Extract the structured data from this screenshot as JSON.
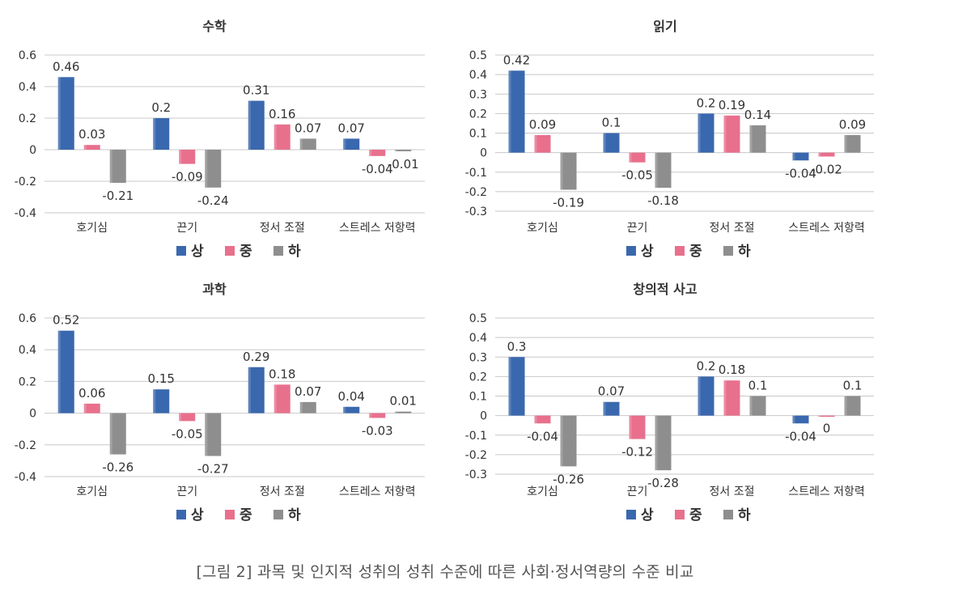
{
  "colors": {
    "상": "#3A68AE",
    "중": "#E8708D",
    "하": "#8E8E8E"
  },
  "caption": "[그림 2] 과목 및 인지적 성취의 성취 수준에 따른 사회·정서역량의 수준 비교",
  "chart_data": [
    {
      "type": "bar",
      "title": "수학",
      "categories": [
        "호기심",
        "끈기",
        "정서 조절",
        "스트레스 저항력"
      ],
      "ylim": [
        -0.4,
        0.6
      ],
      "yticks": [
        -0.4,
        -0.2,
        0,
        0.2,
        0.4,
        0.6
      ],
      "ytick_labels": [
        "-0.4",
        "-0.2",
        "0",
        "0.2",
        "0.4",
        "0.6"
      ],
      "grid": true,
      "legend_position": "bottom",
      "series": [
        {
          "name": "상",
          "values": [
            0.46,
            0.2,
            0.31,
            0.07
          ],
          "labels": [
            "0.46",
            "0.2",
            "0.31",
            "0.07"
          ]
        },
        {
          "name": "중",
          "values": [
            0.03,
            -0.09,
            0.16,
            -0.04
          ],
          "labels": [
            "0.03",
            "-0.09",
            "0.16",
            "-0.04"
          ]
        },
        {
          "name": "하",
          "values": [
            -0.21,
            -0.24,
            0.07,
            -0.01
          ],
          "labels": [
            "-0.21",
            "-0.24",
            "0.07",
            "-0.01"
          ]
        }
      ]
    },
    {
      "type": "bar",
      "title": "읽기",
      "categories": [
        "호기심",
        "끈기",
        "정서 조절",
        "스트레스 저항력"
      ],
      "ylim": [
        -0.3,
        0.5
      ],
      "yticks": [
        -0.3,
        -0.2,
        -0.1,
        0,
        0.1,
        0.2,
        0.3,
        0.4,
        0.5
      ],
      "ytick_labels": [
        "-0.3",
        "-0.2",
        "-0.1",
        "0",
        "0.1",
        "0.2",
        "0.3",
        "0.4",
        "0.5"
      ],
      "grid": true,
      "legend_position": "bottom",
      "series": [
        {
          "name": "상",
          "values": [
            0.42,
            0.1,
            0.2,
            -0.04
          ],
          "labels": [
            "0.42",
            "0.1",
            "0.2",
            "-0.04"
          ]
        },
        {
          "name": "중",
          "values": [
            0.09,
            -0.05,
            0.19,
            -0.02
          ],
          "labels": [
            "0.09",
            "-0.05",
            "0.19",
            "-0.02"
          ]
        },
        {
          "name": "하",
          "values": [
            -0.19,
            -0.18,
            0.14,
            0.09
          ],
          "labels": [
            "-0.19",
            "-0.18",
            "0.14",
            "0.09"
          ]
        }
      ]
    },
    {
      "type": "bar",
      "title": "과학",
      "categories": [
        "호기심",
        "끈기",
        "정서 조절",
        "스트레스 저항력"
      ],
      "ylim": [
        -0.4,
        0.6
      ],
      "yticks": [
        -0.4,
        -0.2,
        0,
        0.2,
        0.4,
        0.6
      ],
      "ytick_labels": [
        "-0.4",
        "-0.2",
        "0",
        "0.2",
        "0.4",
        "0.6"
      ],
      "grid": true,
      "legend_position": "bottom",
      "series": [
        {
          "name": "상",
          "values": [
            0.52,
            0.15,
            0.29,
            0.04
          ],
          "labels": [
            "0.52",
            "0.15",
            "0.29",
            "0.04"
          ]
        },
        {
          "name": "중",
          "values": [
            0.06,
            -0.05,
            0.18,
            -0.03
          ],
          "labels": [
            "0.06",
            "-0.05",
            "0.18",
            "-0.03"
          ]
        },
        {
          "name": "하",
          "values": [
            -0.26,
            -0.27,
            0.07,
            0.01
          ],
          "labels": [
            "-0.26",
            "-0.27",
            "0.07",
            "0.01"
          ]
        }
      ]
    },
    {
      "type": "bar",
      "title": "창의적 사고",
      "categories": [
        "호기심",
        "끈기",
        "정서 조절",
        "스트레스 저항력"
      ],
      "ylim": [
        -0.3,
        0.5
      ],
      "yticks": [
        -0.3,
        -0.2,
        -0.1,
        0,
        0.1,
        0.2,
        0.3,
        0.4,
        0.5
      ],
      "ytick_labels": [
        "-0.3",
        "-0.2",
        "-0.1",
        "0",
        "0.1",
        "0.2",
        "0.3",
        "0.4",
        "0.5"
      ],
      "grid": true,
      "legend_position": "bottom",
      "series": [
        {
          "name": "상",
          "values": [
            0.3,
            0.07,
            0.2,
            -0.04
          ],
          "labels": [
            "0.3",
            "0.07",
            "0.2",
            "-0.04"
          ]
        },
        {
          "name": "중",
          "values": [
            -0.04,
            -0.12,
            0.18,
            0
          ],
          "labels": [
            "-0.04",
            "-0.12",
            "0.18",
            "0"
          ]
        },
        {
          "name": "하",
          "values": [
            -0.26,
            -0.28,
            0.1,
            0.1
          ],
          "labels": [
            "-0.26",
            "-0.28",
            "0.1",
            "0.1"
          ]
        }
      ]
    }
  ]
}
